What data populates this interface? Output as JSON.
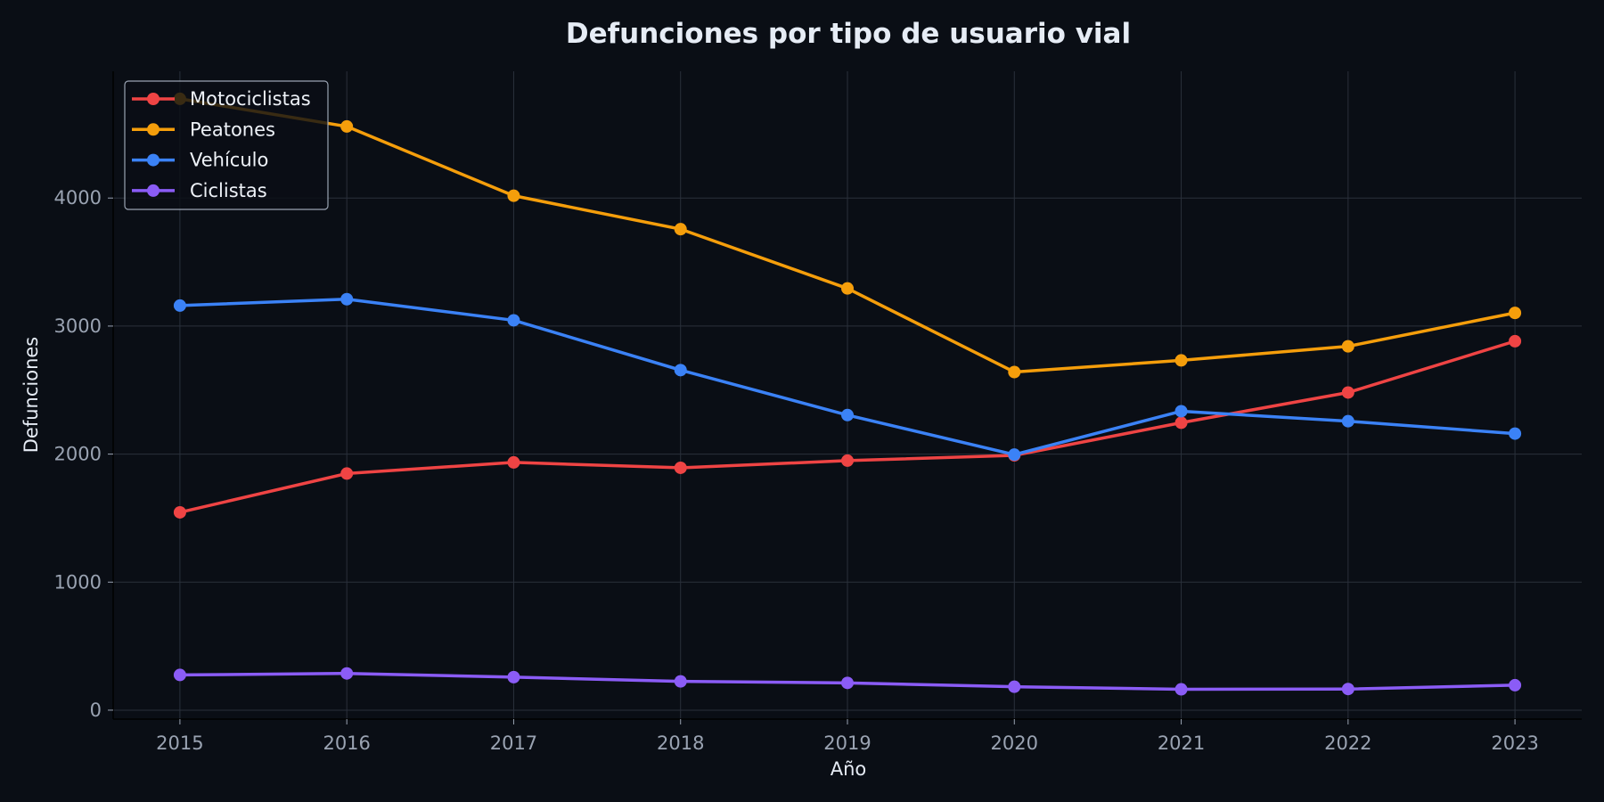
{
  "chart_data": {
    "type": "line",
    "title": "Defunciones por tipo de usuario vial",
    "xlabel": "Año",
    "ylabel": "Defunciones",
    "x": [
      2015,
      2016,
      2017,
      2018,
      2019,
      2020,
      2021,
      2022,
      2023
    ],
    "xlim": [
      2014.6,
      2023.4
    ],
    "ylim": [
      -70,
      4990
    ],
    "yticks": [
      0,
      1000,
      2000,
      3000,
      4000
    ],
    "grid": true,
    "legend_position": "top-left",
    "series": [
      {
        "name": "Motociclistas",
        "color": "#ef4444",
        "values": [
          1545,
          1848,
          1935,
          1893,
          1949,
          1990,
          2245,
          2481,
          2882
        ]
      },
      {
        "name": "Peatones",
        "color": "#f59e0b",
        "values": [
          4775,
          4559,
          4018,
          3757,
          3294,
          2641,
          2732,
          2842,
          3103
        ]
      },
      {
        "name": "Vehículo",
        "color": "#3b82f6",
        "values": [
          3160,
          3210,
          3045,
          2656,
          2305,
          1996,
          2335,
          2257,
          2160
        ]
      },
      {
        "name": "Ciclistas",
        "color": "#8b5cf6",
        "values": [
          275,
          287,
          258,
          225,
          213,
          183,
          163,
          165,
          195
        ]
      }
    ]
  }
}
